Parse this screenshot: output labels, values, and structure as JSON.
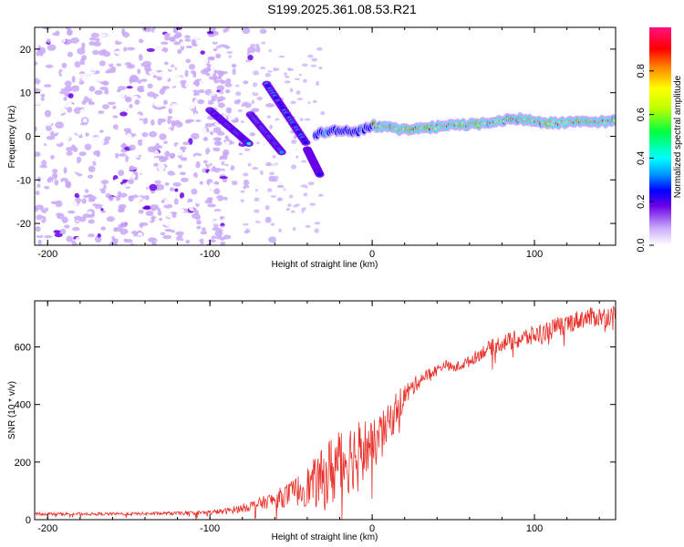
{
  "title": "S199.2025.361.08.53.R21",
  "colors": {
    "snr_line": "#e8302a",
    "axis": "#000000"
  },
  "chart_data": [
    {
      "type": "heatmap",
      "name": "spectrogram",
      "xlabel": "Height of straight line (km)",
      "ylabel": "Frequency (Hz)",
      "xlim": [
        -208,
        150
      ],
      "ylim": [
        -25,
        25
      ],
      "xticks": [
        -200,
        -100,
        0,
        100
      ],
      "yticks": [
        -20,
        -10,
        0,
        10,
        20
      ],
      "colorbar": {
        "label": "Normalized spectral amplitude",
        "range": [
          0,
          1
        ],
        "ticks": [
          0.0,
          0.2,
          0.4,
          0.6,
          0.8
        ],
        "tick_labels": [
          "0.0",
          "0.2",
          "0.4",
          "0.6",
          "0.8"
        ]
      },
      "carrier_track": [
        {
          "x": -35,
          "y": 0.5
        },
        {
          "x": -20,
          "y": 1.5
        },
        {
          "x": -10,
          "y": 1.0
        },
        {
          "x": 0,
          "y": 2.5
        },
        {
          "x": 20,
          "y": 1.5
        },
        {
          "x": 50,
          "y": 2.5
        },
        {
          "x": 70,
          "y": 3.0
        },
        {
          "x": 90,
          "y": 4.0
        },
        {
          "x": 110,
          "y": 3.0
        },
        {
          "x": 150,
          "y": 3.5
        }
      ],
      "features": [
        {
          "x0": -100,
          "y0": 6,
          "x1": -75,
          "y1": -2,
          "amp": 0.4
        },
        {
          "x0": -75,
          "y0": 5,
          "x1": -55,
          "y1": -4,
          "amp": 0.45
        },
        {
          "x0": -65,
          "y0": 12,
          "x1": -40,
          "y1": -2,
          "amp": 0.35
        },
        {
          "x0": -40,
          "y0": -3,
          "x1": -32,
          "y1": -9,
          "amp": 0.3
        }
      ]
    },
    {
      "type": "line",
      "name": "snr",
      "xlabel": "Height of straight line (km)",
      "ylabel": "SNR (10 * v/v)",
      "xlim": [
        -208,
        150
      ],
      "ylim": [
        0,
        760
      ],
      "xticks": [
        -200,
        -100,
        0,
        100
      ],
      "yticks": [
        0,
        200,
        400,
        600
      ],
      "x": [
        -208,
        -150,
        -120,
        -100,
        -90,
        -80,
        -70,
        -60,
        -50,
        -40,
        -30,
        -25,
        -20,
        -15,
        -10,
        -5,
        0,
        5,
        10,
        15,
        20,
        25,
        30,
        40,
        45,
        50,
        60,
        70,
        80,
        90,
        100,
        110,
        120,
        130,
        140,
        150
      ],
      "y": [
        20,
        20,
        22,
        25,
        30,
        40,
        55,
        70,
        90,
        115,
        140,
        170,
        200,
        215,
        230,
        250,
        250,
        290,
        330,
        390,
        430,
        460,
        490,
        520,
        540,
        525,
        550,
        590,
        615,
        625,
        640,
        660,
        680,
        700,
        705,
        710
      ],
      "noise": [
        5,
        5,
        6,
        8,
        10,
        15,
        20,
        30,
        45,
        70,
        110,
        130,
        150,
        130,
        120,
        110,
        90,
        80,
        70,
        60,
        45,
        30,
        25,
        20,
        15,
        18,
        20,
        25,
        30,
        35,
        35,
        35,
        35,
        35,
        35,
        35
      ]
    }
  ]
}
